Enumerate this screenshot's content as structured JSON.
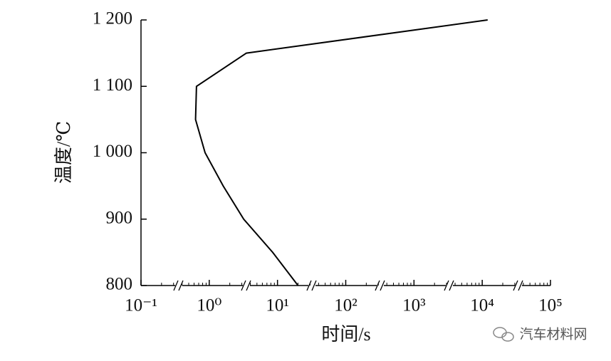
{
  "chart_data": {
    "type": "line",
    "x_label": "时间/s",
    "y_label": "温度/℃",
    "x": [
      20,
      8.5,
      3.2,
      1.6,
      0.87,
      0.63,
      0.65,
      3.5,
      12000
    ],
    "values": [
      800,
      850,
      900,
      950,
      1000,
      1050,
      1100,
      1150,
      1200
    ],
    "color": "#000000",
    "xlog": true,
    "xlim": [
      0.1,
      100000
    ],
    "xticks": [
      {
        "value": 0.1,
        "label": "10⁻¹"
      },
      {
        "value": 1,
        "label": "10⁰"
      },
      {
        "value": 10,
        "label": "10¹"
      },
      {
        "value": 100,
        "label": "10²"
      },
      {
        "value": 1000,
        "label": "10³"
      },
      {
        "value": 10000,
        "label": "10⁴"
      },
      {
        "value": 100000,
        "label": "10⁵"
      }
    ],
    "ylim": [
      800,
      1200
    ],
    "yticks": [
      800,
      900,
      {
        "value": 1000,
        "label": "1 000"
      },
      {
        "value": 1100,
        "label": "1 100"
      },
      {
        "value": 1200,
        "label": "1 200"
      }
    ],
    "grid": false
  },
  "watermark": "汽车材料网"
}
